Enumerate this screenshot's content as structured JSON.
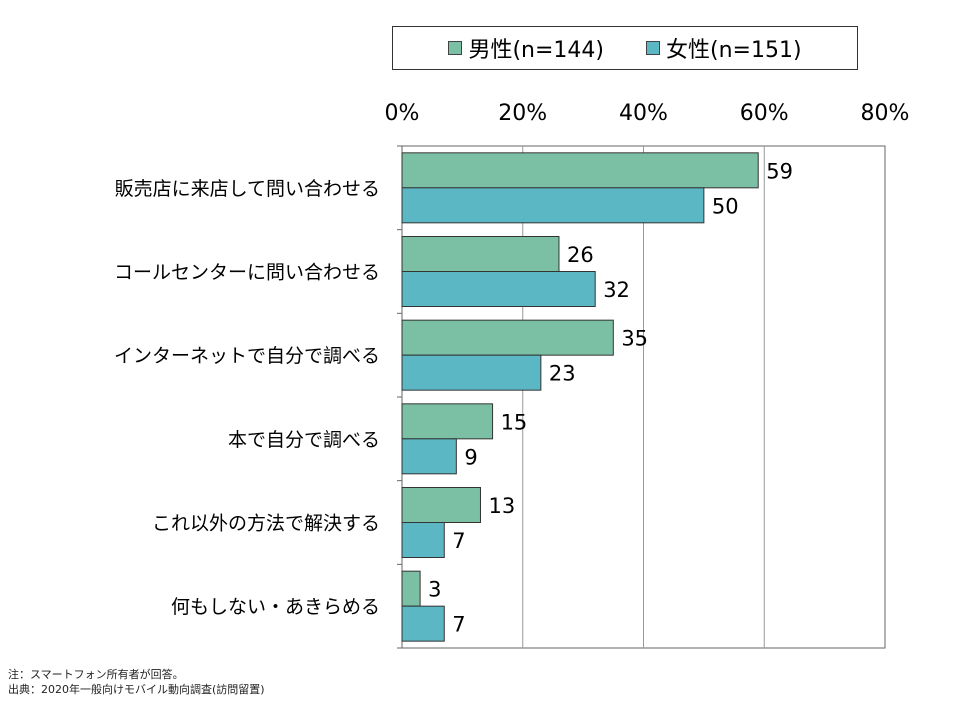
{
  "chart_data": {
    "type": "bar",
    "orientation": "horizontal",
    "categories": [
      "販売店に来店して問い合わせる",
      "コールセンターに問い合わせる",
      "インターネットで自分で調べる",
      "本で自分で調べる",
      "これ以外の方法で解決する",
      "何もしない・あきらめる"
    ],
    "series": [
      {
        "name": "男性(n=144)",
        "values": [
          59,
          26,
          35,
          15,
          13,
          3
        ],
        "color": "#7bbfa5"
      },
      {
        "name": "女性(n=151)",
        "values": [
          50,
          32,
          23,
          9,
          7,
          7
        ],
        "color": "#5bb7c4"
      }
    ],
    "xlim": [
      0,
      80
    ],
    "xticks": [
      "0%",
      "20%",
      "40%",
      "60%",
      "80%"
    ],
    "tick_values": [
      0,
      20,
      40,
      60,
      80
    ],
    "grid": true,
    "legend": "top"
  },
  "notes": {
    "line1": "注：スマートフォン所有者が回答。",
    "line2": "出典：2020年一般向けモバイル動向調査(訪問留置)"
  }
}
